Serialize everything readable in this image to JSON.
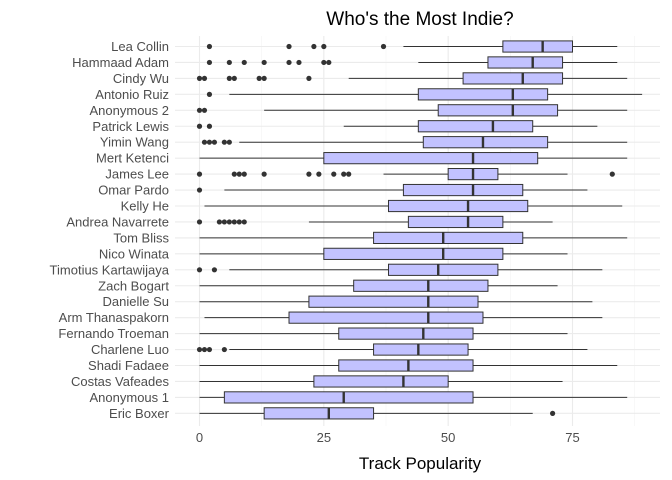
{
  "colors": {
    "box_fill": "#c2c2ff",
    "line": "#333333",
    "outlier": "#333333",
    "grid": "#ebebeb",
    "background": "#ffffff"
  },
  "chart_data": {
    "type": "boxplot",
    "orientation": "horizontal",
    "title": "Who's the Most Indie?",
    "xlabel": "Track Popularity",
    "ylabel": "",
    "xlim": [
      -4,
      89
    ],
    "x_ticks": [
      0,
      25,
      50,
      75
    ],
    "grid": true,
    "legend": "none",
    "categories": [
      "Lea Collin",
      "Hammaad Adam",
      "Cindy Wu",
      "Antonio Ruiz",
      "Anonymous 2",
      "Patrick Lewis",
      "Yimin Wang",
      "Mert Ketenci",
      "James Lee",
      "Omar Pardo",
      "Kelly He",
      "Andrea Navarrete",
      "Tom Bliss",
      "Nico Winata",
      "Timotius Kartawijaya",
      "Zach Bogart",
      "Danielle Su",
      "Arm Thanaspakorn",
      "Fernando Troeman",
      "Charlene Luo",
      "Shadi Fadaee",
      "Costas Vafeades",
      "Anonymous 1",
      "Eric Boxer"
    ],
    "boxes": [
      {
        "min": 41,
        "q1": 61,
        "median": 69,
        "q3": 75,
        "max": 84,
        "outliers": [
          2,
          18,
          23,
          25,
          37
        ]
      },
      {
        "min": 44,
        "q1": 58,
        "median": 67,
        "q3": 73,
        "max": 84,
        "outliers": [
          2,
          6,
          9,
          13,
          18,
          20,
          25,
          26
        ]
      },
      {
        "min": 30,
        "q1": 53,
        "median": 65,
        "q3": 73,
        "max": 86,
        "outliers": [
          0,
          1,
          6,
          7,
          12,
          13,
          22
        ]
      },
      {
        "min": 6,
        "q1": 44,
        "median": 63,
        "q3": 70,
        "max": 89,
        "outliers": [
          2
        ]
      },
      {
        "min": 13,
        "q1": 48,
        "median": 63,
        "q3": 72,
        "max": 86,
        "outliers": [
          0,
          1
        ]
      },
      {
        "min": 29,
        "q1": 44,
        "median": 59,
        "q3": 67,
        "max": 80,
        "outliers": [
          0,
          2
        ]
      },
      {
        "min": 8,
        "q1": 45,
        "median": 57,
        "q3": 70,
        "max": 86,
        "outliers": [
          1,
          2,
          3,
          5,
          6
        ]
      },
      {
        "min": 0,
        "q1": 25,
        "median": 55,
        "q3": 68,
        "max": 86,
        "outliers": []
      },
      {
        "min": 37,
        "q1": 50,
        "median": 55,
        "q3": 60,
        "max": 74,
        "outliers": [
          0,
          7,
          8,
          9,
          13,
          22,
          24,
          27,
          29,
          30,
          83
        ]
      },
      {
        "min": 5,
        "q1": 41,
        "median": 55,
        "q3": 65,
        "max": 78,
        "outliers": [
          0
        ]
      },
      {
        "min": 1,
        "q1": 38,
        "median": 54,
        "q3": 66,
        "max": 85,
        "outliers": []
      },
      {
        "min": 22,
        "q1": 42,
        "median": 54,
        "q3": 61,
        "max": 71,
        "outliers": [
          0,
          4,
          5,
          6,
          7,
          8,
          9
        ]
      },
      {
        "min": 0,
        "q1": 35,
        "median": 49,
        "q3": 65,
        "max": 86,
        "outliers": []
      },
      {
        "min": 0,
        "q1": 25,
        "median": 49,
        "q3": 61,
        "max": 74,
        "outliers": []
      },
      {
        "min": 6,
        "q1": 38,
        "median": 48,
        "q3": 60,
        "max": 81,
        "outliers": [
          0,
          3
        ]
      },
      {
        "min": 0,
        "q1": 31,
        "median": 46,
        "q3": 58,
        "max": 72,
        "outliers": []
      },
      {
        "min": 0,
        "q1": 22,
        "median": 46,
        "q3": 56,
        "max": 79,
        "outliers": []
      },
      {
        "min": 1,
        "q1": 18,
        "median": 46,
        "q3": 57,
        "max": 81,
        "outliers": []
      },
      {
        "min": 0,
        "q1": 28,
        "median": 45,
        "q3": 55,
        "max": 74,
        "outliers": []
      },
      {
        "min": 6,
        "q1": 35,
        "median": 44,
        "q3": 54,
        "max": 78,
        "outliers": [
          0,
          1,
          2,
          5
        ]
      },
      {
        "min": 0,
        "q1": 28,
        "median": 42,
        "q3": 55,
        "max": 84,
        "outliers": []
      },
      {
        "min": 0,
        "q1": 23,
        "median": 41,
        "q3": 50,
        "max": 73,
        "outliers": []
      },
      {
        "min": 0,
        "q1": 5,
        "median": 29,
        "q3": 55,
        "max": 86,
        "outliers": []
      },
      {
        "min": 0,
        "q1": 13,
        "median": 26,
        "q3": 35,
        "max": 67,
        "outliers": [
          71
        ]
      }
    ]
  }
}
